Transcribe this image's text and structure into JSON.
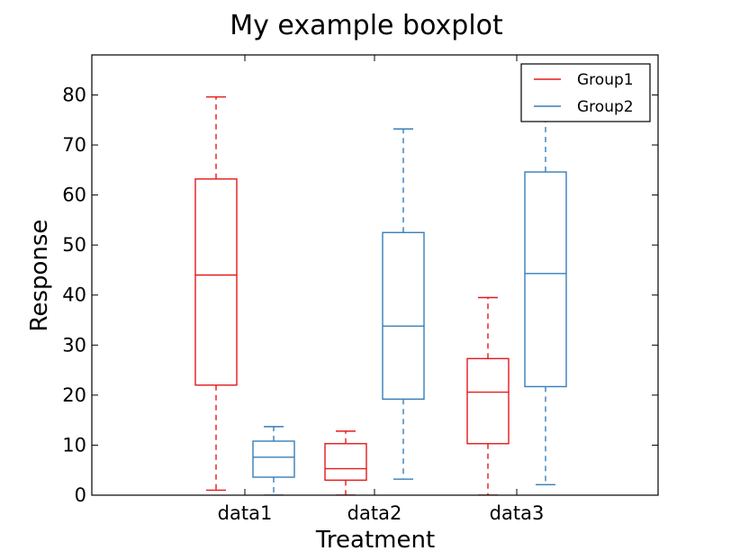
{
  "chart_data": {
    "type": "boxplot",
    "title": "My example boxplot",
    "xlabel": "Treatment",
    "ylabel": "Response",
    "categories": [
      "data1",
      "data2",
      "data3"
    ],
    "ylim": [
      0,
      88
    ],
    "yticks": [
      0,
      10,
      20,
      30,
      40,
      50,
      60,
      70,
      80
    ],
    "grid": false,
    "legend": {
      "placement": "top-right",
      "entries": [
        "Group1",
        "Group2"
      ]
    },
    "series": [
      {
        "name": "Group1",
        "color": "#e41a1c",
        "boxes": [
          {
            "whislo": 1.0,
            "q1": 22.0,
            "med": 44.0,
            "q3": 63.2,
            "whishi": 79.6
          },
          {
            "whislo": 0.0,
            "q1": 3.0,
            "med": 5.3,
            "q3": 10.3,
            "whishi": 12.8
          },
          {
            "whislo": 0.0,
            "q1": 10.3,
            "med": 20.6,
            "q3": 27.3,
            "whishi": 39.5
          }
        ]
      },
      {
        "name": "Group2",
        "color": "#377eb8",
        "boxes": [
          {
            "whislo": 0.0,
            "q1": 3.6,
            "med": 7.6,
            "q3": 10.8,
            "whishi": 13.7
          },
          {
            "whislo": 3.2,
            "q1": 19.2,
            "med": 33.8,
            "q3": 52.5,
            "whishi": 73.2
          },
          {
            "whislo": 2.1,
            "q1": 21.7,
            "med": 44.3,
            "q3": 64.6,
            "whishi": 75.0
          }
        ]
      }
    ]
  }
}
